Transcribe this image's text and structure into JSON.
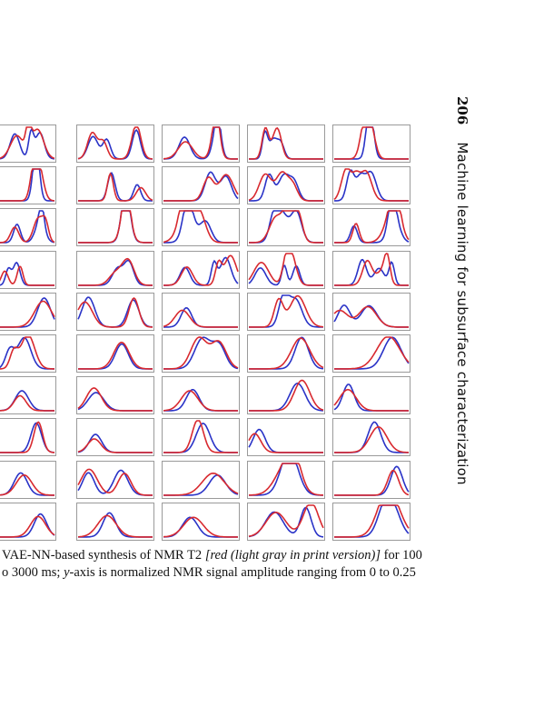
{
  "header": {
    "page_number": "206",
    "book_title": "Machine learning for subsurface characterization"
  },
  "figure": {
    "rows": 10,
    "cols": 5,
    "first_col_truncated": true,
    "colors": {
      "original": "#2a33c7",
      "synthetic": "#d8292f",
      "frame": "#9a9a9a"
    },
    "caption_line1": {
      "a": "VAE-NN-based synthesis of NMR T2 ",
      "b": "[red (light gray in print version)]",
      "c": " for 100"
    },
    "caption_line2": {
      "a": "o 3000 ms; ",
      "b": "y",
      "c": "-axis is normalized NMR signal amplitude ranging from 0 to 0.25"
    }
  }
}
